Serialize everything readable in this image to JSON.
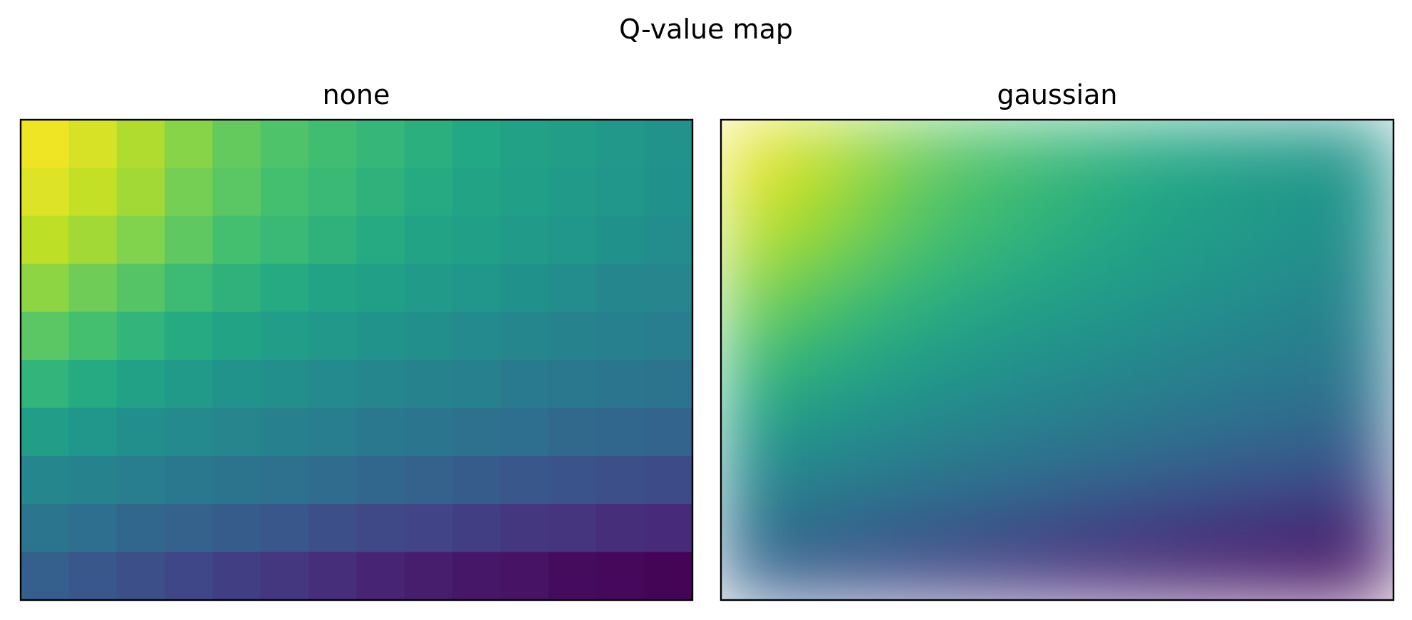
{
  "chart_data": {
    "type": "heatmap",
    "suptitle": "Q-value map",
    "colormap": "viridis",
    "value_range": [
      0,
      1
    ],
    "grid": false,
    "axes_visible": false,
    "colorbar": false,
    "panels": [
      {
        "title": "none",
        "interpolation": "none",
        "rows": 10,
        "cols": 14,
        "values": [
          [
            0.98,
            0.94,
            0.88,
            0.82,
            0.76,
            0.72,
            0.69,
            0.66,
            0.63,
            0.6,
            0.57,
            0.55,
            0.53,
            0.51
          ],
          [
            0.95,
            0.91,
            0.86,
            0.79,
            0.74,
            0.7,
            0.67,
            0.64,
            0.61,
            0.58,
            0.56,
            0.54,
            0.52,
            0.5
          ],
          [
            0.9,
            0.86,
            0.81,
            0.75,
            0.7,
            0.67,
            0.64,
            0.61,
            0.58,
            0.56,
            0.54,
            0.52,
            0.5,
            0.48
          ],
          [
            0.83,
            0.78,
            0.73,
            0.68,
            0.64,
            0.61,
            0.58,
            0.56,
            0.54,
            0.52,
            0.5,
            0.48,
            0.46,
            0.45
          ],
          [
            0.74,
            0.7,
            0.65,
            0.61,
            0.58,
            0.55,
            0.53,
            0.51,
            0.49,
            0.47,
            0.46,
            0.44,
            0.43,
            0.42
          ],
          [
            0.65,
            0.61,
            0.57,
            0.54,
            0.51,
            0.49,
            0.47,
            0.46,
            0.44,
            0.43,
            0.41,
            0.4,
            0.39,
            0.38
          ],
          [
            0.55,
            0.52,
            0.49,
            0.47,
            0.45,
            0.43,
            0.42,
            0.4,
            0.39,
            0.37,
            0.36,
            0.34,
            0.33,
            0.32
          ],
          [
            0.46,
            0.44,
            0.42,
            0.4,
            0.38,
            0.37,
            0.35,
            0.33,
            0.31,
            0.29,
            0.27,
            0.26,
            0.24,
            0.23
          ],
          [
            0.39,
            0.36,
            0.33,
            0.31,
            0.29,
            0.27,
            0.24,
            0.22,
            0.2,
            0.18,
            0.16,
            0.15,
            0.13,
            0.12
          ],
          [
            0.3,
            0.27,
            0.24,
            0.21,
            0.18,
            0.16,
            0.13,
            0.1,
            0.08,
            0.06,
            0.05,
            0.03,
            0.02,
            0.01
          ]
        ]
      },
      {
        "title": "gaussian",
        "interpolation": "gaussian",
        "rows": 10,
        "cols": 14,
        "values": [
          [
            0.98,
            0.94,
            0.88,
            0.82,
            0.76,
            0.72,
            0.69,
            0.66,
            0.63,
            0.6,
            0.57,
            0.55,
            0.53,
            0.51
          ],
          [
            0.95,
            0.91,
            0.86,
            0.79,
            0.74,
            0.7,
            0.67,
            0.64,
            0.61,
            0.58,
            0.56,
            0.54,
            0.52,
            0.5
          ],
          [
            0.9,
            0.86,
            0.81,
            0.75,
            0.7,
            0.67,
            0.64,
            0.61,
            0.58,
            0.56,
            0.54,
            0.52,
            0.5,
            0.48
          ],
          [
            0.83,
            0.78,
            0.73,
            0.68,
            0.64,
            0.61,
            0.58,
            0.56,
            0.54,
            0.52,
            0.5,
            0.48,
            0.46,
            0.45
          ],
          [
            0.74,
            0.7,
            0.65,
            0.61,
            0.58,
            0.55,
            0.53,
            0.51,
            0.49,
            0.47,
            0.46,
            0.44,
            0.43,
            0.42
          ],
          [
            0.65,
            0.61,
            0.57,
            0.54,
            0.51,
            0.49,
            0.47,
            0.46,
            0.44,
            0.43,
            0.41,
            0.4,
            0.39,
            0.38
          ],
          [
            0.55,
            0.52,
            0.49,
            0.47,
            0.45,
            0.43,
            0.42,
            0.4,
            0.39,
            0.37,
            0.36,
            0.34,
            0.33,
            0.32
          ],
          [
            0.46,
            0.44,
            0.42,
            0.4,
            0.38,
            0.37,
            0.35,
            0.33,
            0.31,
            0.29,
            0.27,
            0.26,
            0.24,
            0.23
          ],
          [
            0.39,
            0.36,
            0.33,
            0.31,
            0.29,
            0.27,
            0.24,
            0.22,
            0.2,
            0.18,
            0.16,
            0.15,
            0.13,
            0.12
          ],
          [
            0.3,
            0.27,
            0.24,
            0.21,
            0.18,
            0.16,
            0.13,
            0.1,
            0.08,
            0.06,
            0.05,
            0.03,
            0.02,
            0.01
          ]
        ]
      }
    ]
  }
}
